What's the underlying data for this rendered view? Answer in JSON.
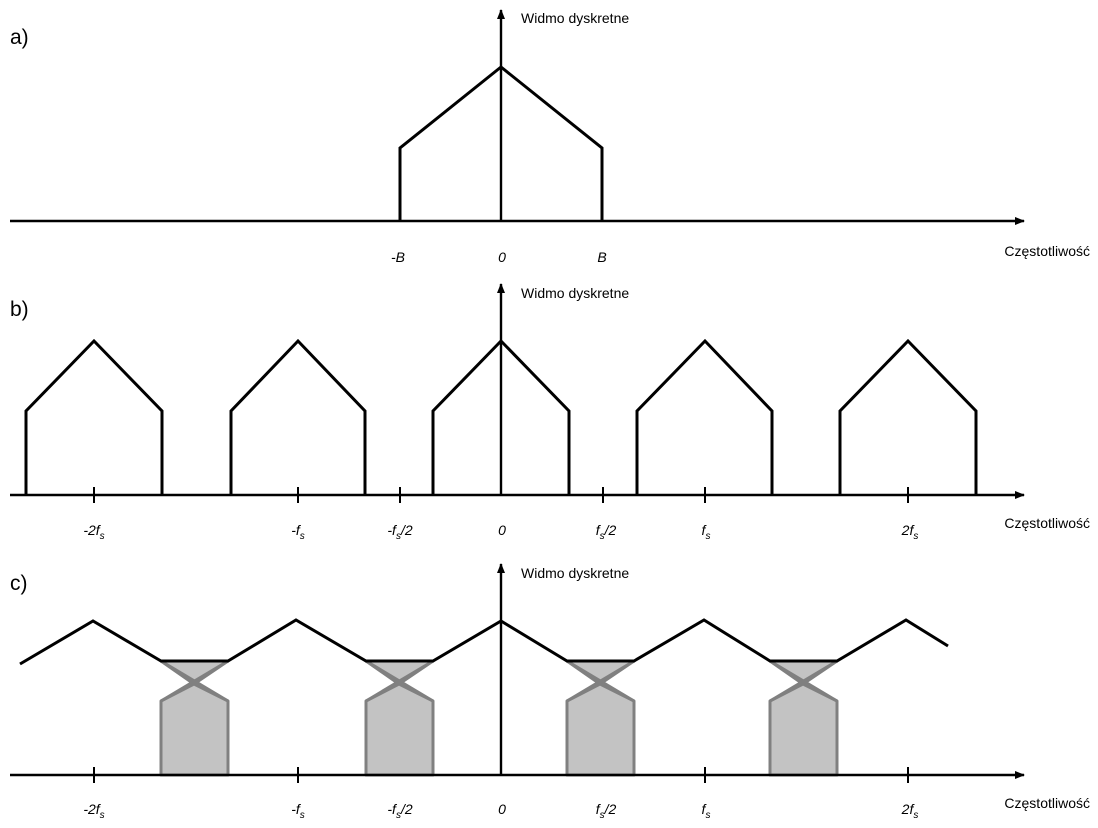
{
  "colors": {
    "line": "#000000",
    "alias_fill": "#c3c3c3",
    "alias_stroke": "#808080"
  },
  "panels": [
    {
      "id": "a",
      "label": "a)",
      "y_title": "Widmo dyskretne",
      "x_title": "Częstotliwość",
      "ticks": [
        {
          "x": -1,
          "main": "-B",
          "sub": "",
          "tail": ""
        },
        {
          "x": 0,
          "main": "0",
          "sub": "",
          "tail": ""
        },
        {
          "x": 1,
          "main": "B",
          "sub": "",
          "tail": ""
        }
      ]
    },
    {
      "id": "b",
      "label": "b)",
      "y_title": "Widmo dyskretne",
      "x_title": "Częstotliwość",
      "ticks": [
        {
          "x": -2,
          "main": "-2f",
          "sub": "s",
          "tail": ""
        },
        {
          "x": -1,
          "main": "-f",
          "sub": "s",
          "tail": ""
        },
        {
          "x": -0.5,
          "main": "-f",
          "sub": "s",
          "tail": "/2"
        },
        {
          "x": 0,
          "main": "0",
          "sub": "",
          "tail": ""
        },
        {
          "x": 0.5,
          "main": "f",
          "sub": "s",
          "tail": "/2"
        },
        {
          "x": 1,
          "main": "f",
          "sub": "s",
          "tail": ""
        },
        {
          "x": 2,
          "main": "2f",
          "sub": "s",
          "tail": ""
        }
      ]
    },
    {
      "id": "c",
      "label": "c)",
      "y_title": "Widmo dyskretne",
      "x_title": "Częstotliwość",
      "ticks": [
        {
          "x": -2,
          "main": "-2f",
          "sub": "s",
          "tail": ""
        },
        {
          "x": -1,
          "main": "-f",
          "sub": "s",
          "tail": ""
        },
        {
          "x": -0.5,
          "main": "-f",
          "sub": "s",
          "tail": "/2"
        },
        {
          "x": 0,
          "main": "0",
          "sub": "",
          "tail": ""
        },
        {
          "x": 0.5,
          "main": "f",
          "sub": "s",
          "tail": "/2"
        },
        {
          "x": 1,
          "main": "f",
          "sub": "s",
          "tail": ""
        },
        {
          "x": 2,
          "main": "2f",
          "sub": "s",
          "tail": ""
        }
      ]
    }
  ]
}
